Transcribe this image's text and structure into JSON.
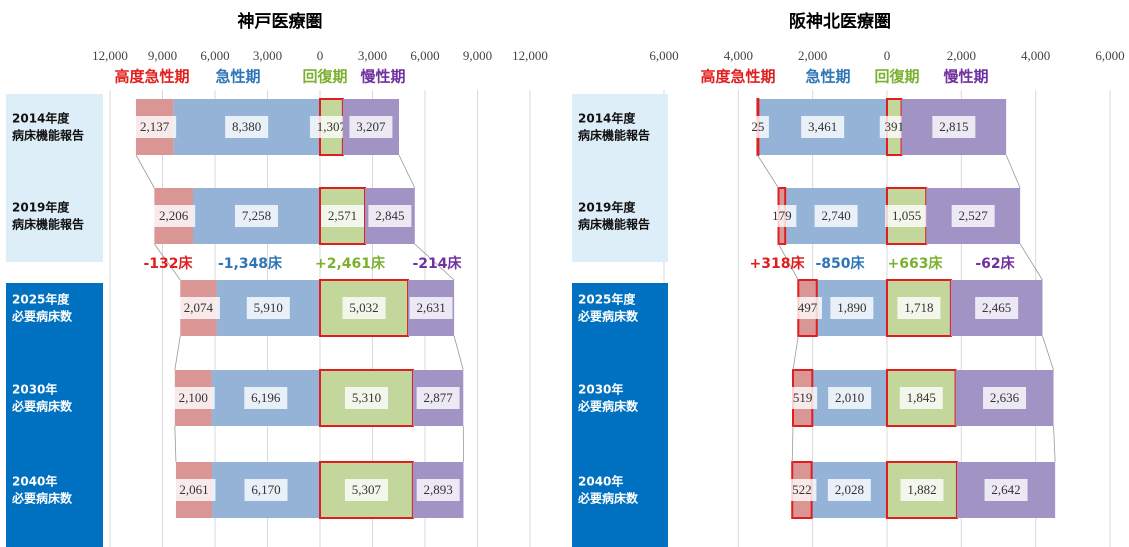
{
  "chart_data": [
    {
      "type": "bar",
      "title": "神戸医療圏",
      "categories": [
        [
          "2014年度",
          "病床機能報告"
        ],
        [
          "2019年度",
          "病床機能報告"
        ],
        [
          "2025年度",
          "必要病床数"
        ],
        [
          "2030年",
          "必要病床数"
        ],
        [
          "2040年",
          "必要病床数"
        ]
      ],
      "xlim": [
        -12000,
        12000
      ],
      "xticks": [
        {
          "value": -12000,
          "label": "12,000"
        },
        {
          "value": -9000,
          "label": "9,000"
        },
        {
          "value": -6000,
          "label": "6,000"
        },
        {
          "value": -3000,
          "label": "3,000"
        },
        0,
        {
          "value": 3000,
          "label": "3,000"
        },
        {
          "value": 6000,
          "label": "6,000"
        },
        {
          "value": 9000,
          "label": "9,000"
        },
        {
          "value": 12000,
          "label": "12,000"
        }
      ],
      "grid": true,
      "series": [
        {
          "name": "高度急性期",
          "color": "#d99694",
          "text_color": "#e01e1e",
          "values": [
            -2137,
            -2206,
            -2074,
            -2100,
            -2061
          ],
          "value_labels": [
            "2,137",
            "2,206",
            "2,074",
            "2,100",
            "2,061"
          ]
        },
        {
          "name": "急性期",
          "color": "#95b3d7",
          "text_color": "#2e75b6",
          "values": [
            -8380,
            -7258,
            -5910,
            -6196,
            -6170
          ],
          "value_labels": [
            "8,380",
            "7,258",
            "5,910",
            "6,196",
            "6,170"
          ]
        },
        {
          "name": "回復期",
          "color": "#c3d69b",
          "text_color": "#7cb030",
          "outline": "#e01e1e",
          "values": [
            1307,
            2571,
            5032,
            5310,
            5307
          ],
          "value_labels": [
            "1,307",
            "2,571",
            "5,032",
            "5,310",
            "5,307"
          ]
        },
        {
          "name": "慢性期",
          "color": "#a293c5",
          "text_color": "#7030a0",
          "values": [
            3207,
            2845,
            2631,
            2877,
            2893
          ],
          "value_labels": [
            "3,207",
            "2,845",
            "2,631",
            "2,877",
            "2,893"
          ]
        }
      ],
      "changes": {
        "values": [
          -132,
          -1348,
          2461,
          -214
        ],
        "value_labels": [
          "-132床",
          "-1,348床",
          "+2,461床",
          "-214床"
        ]
      }
    },
    {
      "type": "bar",
      "title": "阪神北医療圏",
      "categories": [
        [
          "2014年度",
          "病床機能報告"
        ],
        [
          "2019年度",
          "病床機能報告"
        ],
        [
          "2025年度",
          "必要病床数"
        ],
        [
          "2030年",
          "必要病床数"
        ],
        [
          "2040年",
          "必要病床数"
        ]
      ],
      "xlim": [
        -6000,
        6000
      ],
      "xticks": [
        {
          "value": -6000,
          "label": "6,000"
        },
        {
          "value": -4000,
          "label": "4,000"
        },
        {
          "value": -2000,
          "label": "2,000"
        },
        0,
        {
          "value": 2000,
          "label": "2,000"
        },
        {
          "value": 4000,
          "label": "4,000"
        },
        {
          "value": 6000,
          "label": "6,000"
        }
      ],
      "grid": true,
      "series": [
        {
          "name": "高度急性期",
          "color": "#d99694",
          "text_color": "#e01e1e",
          "outline": "#e01e1e",
          "values": [
            -25,
            -179,
            -497,
            -519,
            -522
          ],
          "value_labels": [
            "25",
            "179",
            "497",
            "519",
            "522"
          ]
        },
        {
          "name": "急性期",
          "color": "#95b3d7",
          "text_color": "#2e75b6",
          "values": [
            -3461,
            -2740,
            -1890,
            -2010,
            -2028
          ],
          "value_labels": [
            "3,461",
            "2,740",
            "1,890",
            "2,010",
            "2,028"
          ]
        },
        {
          "name": "回復期",
          "color": "#c3d69b",
          "text_color": "#7cb030",
          "outline": "#e01e1e",
          "values": [
            391,
            1055,
            1718,
            1845,
            1882
          ],
          "value_labels": [
            "391",
            "1,055",
            "1,718",
            "1,845",
            "1,882"
          ]
        },
        {
          "name": "慢性期",
          "color": "#a293c5",
          "text_color": "#7030a0",
          "values": [
            2815,
            2527,
            2465,
            2636,
            2642
          ],
          "value_labels": [
            "2,815",
            "2,527",
            "2,465",
            "2,636",
            "2,642"
          ]
        }
      ],
      "changes": {
        "values": [
          318,
          -850,
          663,
          -62
        ],
        "value_labels": [
          "+318床",
          "-850床",
          "+663床",
          "-62床"
        ]
      }
    }
  ]
}
